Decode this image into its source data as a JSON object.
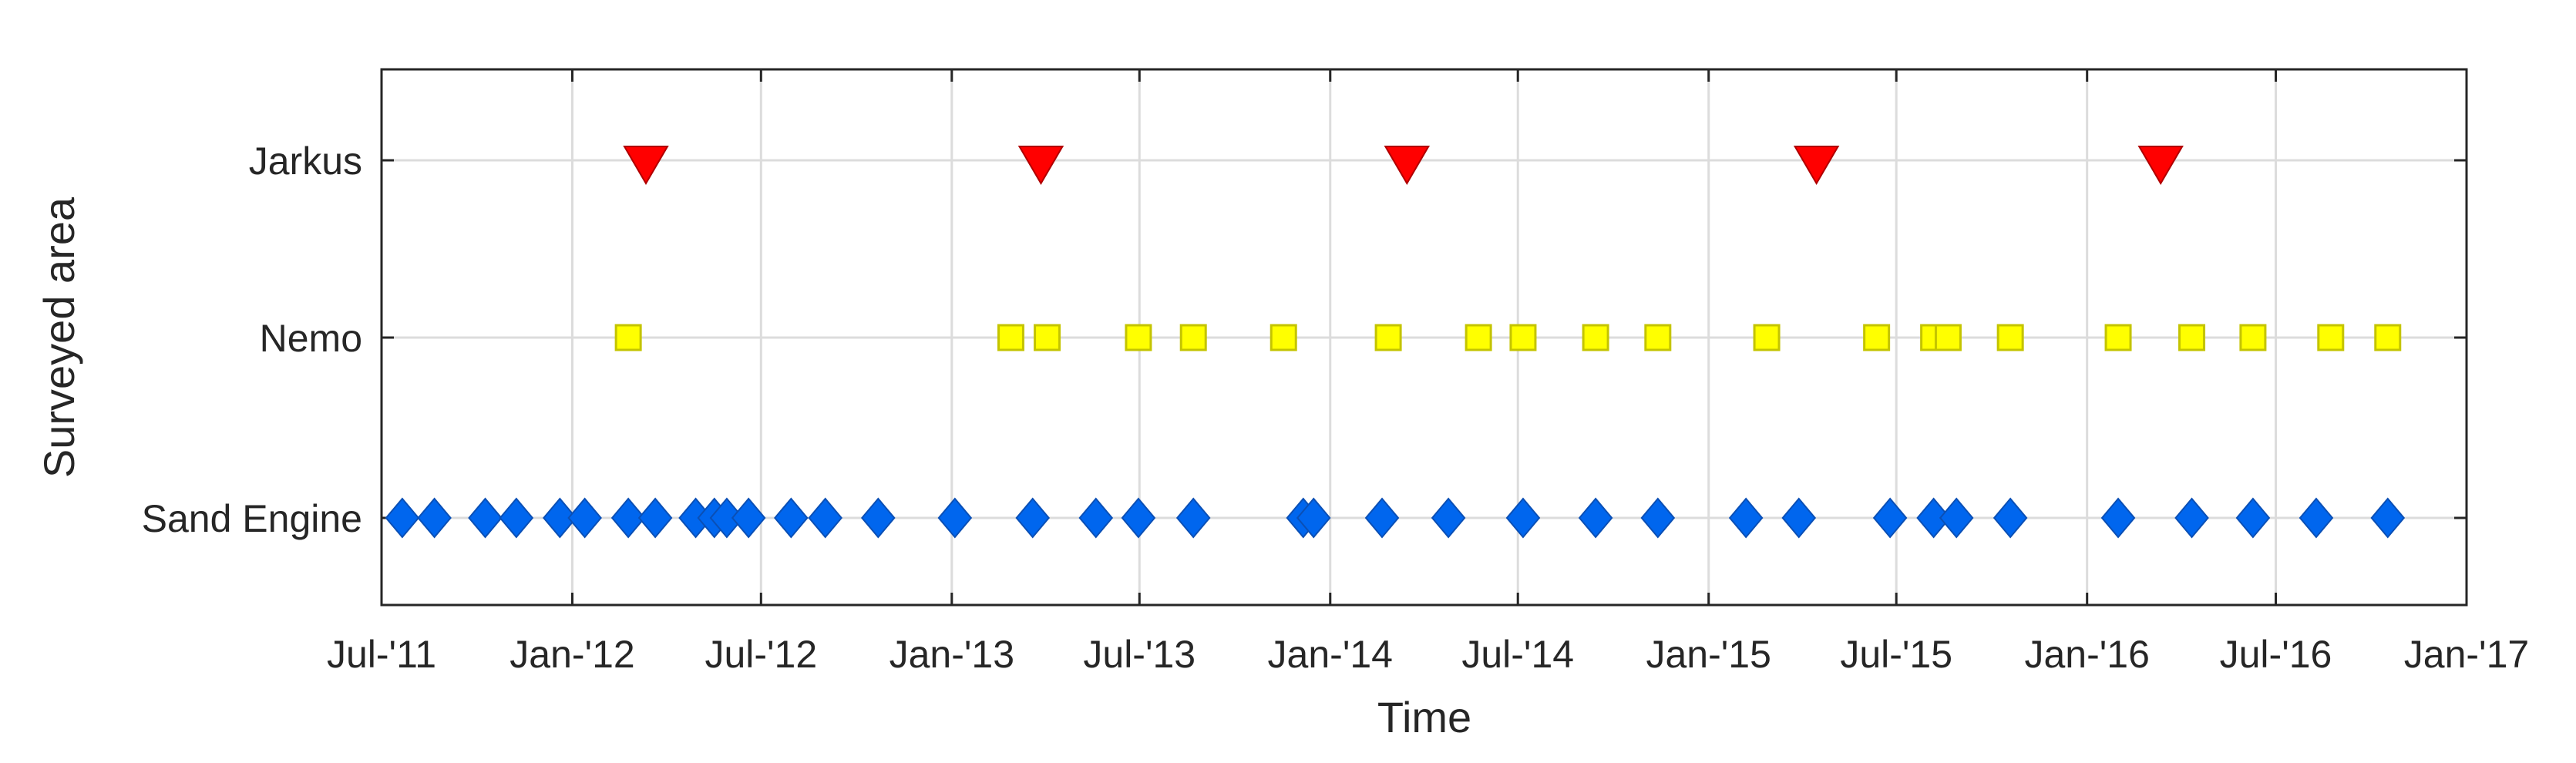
{
  "chart_data": {
    "type": "scatter",
    "title": "",
    "xlabel": "Time",
    "ylabel": "Surveyed area",
    "grid": true,
    "x_ticks": [
      "2011-07-01",
      "2012-01-01",
      "2012-07-01",
      "2013-01-01",
      "2013-07-01",
      "2014-01-01",
      "2014-07-01",
      "2015-01-01",
      "2015-07-01",
      "2016-01-01",
      "2016-07-01",
      "2017-01-01"
    ],
    "x_tick_labels": [
      "Jul-'11",
      "Jan-'12",
      "Jul-'12",
      "Jan-'13",
      "Jul-'13",
      "Jan-'14",
      "Jul-'14",
      "Jan-'15",
      "Jul-'15",
      "Jan-'16",
      "Jul-'16",
      "Jan-'17"
    ],
    "xlim": [
      "2011-07-01",
      "2017-01-01"
    ],
    "categories": [
      "Sand Engine",
      "Nemo",
      "Jarkus"
    ],
    "series": [
      {
        "category": "Jarkus",
        "marker": "triangle-down",
        "color": "#ff0000",
        "x": [
          "2012-03-12",
          "2013-03-28",
          "2014-03-16",
          "2015-04-15",
          "2016-03-12"
        ]
      },
      {
        "category": "Nemo",
        "marker": "square",
        "color": "#ffff00",
        "x": [
          "2012-02-24",
          "2013-02-27",
          "2013-04-03",
          "2013-06-30",
          "2013-08-22",
          "2013-11-17",
          "2014-02-26",
          "2014-05-24",
          "2014-07-06",
          "2014-09-14",
          "2014-11-13",
          "2015-02-26",
          "2015-06-12",
          "2015-08-06",
          "2015-08-20",
          "2015-10-19",
          "2016-01-31",
          "2016-04-11",
          "2016-06-09",
          "2016-08-23",
          "2016-10-17"
        ]
      },
      {
        "category": "Sand Engine",
        "marker": "diamond",
        "color": "#0066ee",
        "x": [
          "2011-07-21",
          "2011-08-21",
          "2011-10-09",
          "2011-11-08",
          "2011-12-20",
          "2012-01-13",
          "2012-02-24",
          "2012-03-21",
          "2012-04-29",
          "2012-05-17",
          "2012-05-29",
          "2012-06-19",
          "2012-07-30",
          "2012-09-01",
          "2012-10-22",
          "2013-01-04",
          "2013-03-20",
          "2013-05-20",
          "2013-06-30",
          "2013-08-22",
          "2013-12-06",
          "2013-12-16",
          "2014-02-20",
          "2014-04-25",
          "2014-07-06",
          "2014-09-14",
          "2014-11-13",
          "2015-02-06",
          "2015-03-29",
          "2015-06-25",
          "2015-08-06",
          "2015-08-28",
          "2015-10-19",
          "2016-01-31",
          "2016-04-11",
          "2016-06-09",
          "2016-08-09",
          "2016-10-17"
        ]
      }
    ]
  }
}
